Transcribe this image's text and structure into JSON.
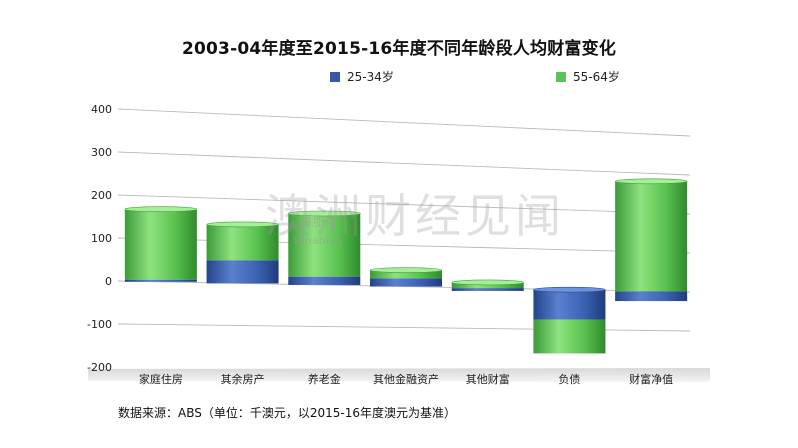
{
  "chart_data": {
    "type": "bar",
    "stacked": true,
    "title": "2003-04年度至2015-16年度不同年龄段人均财富变化",
    "categories": [
      "家庭住房",
      "其余房产",
      "养老金",
      "其他金融资产",
      "其他财富",
      "负债",
      "财富净值"
    ],
    "series": [
      {
        "name": "25-34岁",
        "color": "#3559a8",
        "values": [
          5,
          55,
          20,
          20,
          -7,
          -75,
          -25
        ]
      },
      {
        "name": "55-64岁",
        "color": "#5cc25a",
        "values": [
          165,
          85,
          152,
          20,
          14,
          -85,
          280
        ]
      }
    ],
    "ylim": [
      -200,
      400
    ],
    "yticks": [
      400,
      300,
      200,
      100,
      0,
      -100,
      -200
    ],
    "grid": true,
    "legend_position": "top"
  },
  "footer": {
    "source": "数据来源：ABS（单位：千澳元，以2015-16年度澳元为基准）"
  },
  "watermark": {
    "main": "澳洲财经见闻",
    "sub1": "油那边",
    "sub2": "Hinabian"
  }
}
